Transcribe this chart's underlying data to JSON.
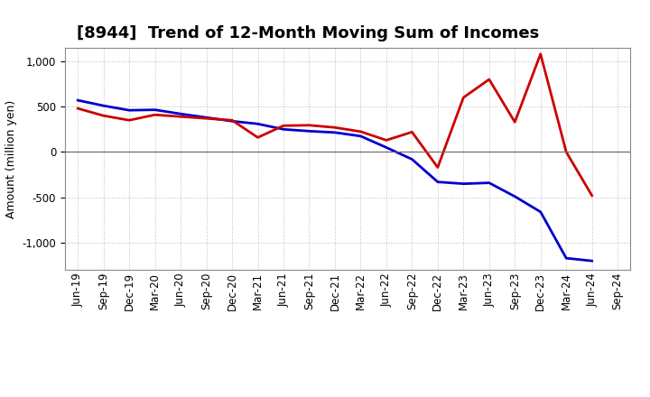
{
  "title": "[8944]  Trend of 12-Month Moving Sum of Incomes",
  "ylabel": "Amount (million yen)",
  "background_color": "#ffffff",
  "grid_color": "#bbbbbb",
  "xlabels": [
    "Jun-19",
    "Sep-19",
    "Dec-19",
    "Mar-20",
    "Jun-20",
    "Sep-20",
    "Dec-20",
    "Mar-21",
    "Jun-21",
    "Sep-21",
    "Dec-21",
    "Mar-22",
    "Jun-22",
    "Sep-22",
    "Dec-22",
    "Mar-23",
    "Jun-23",
    "Sep-23",
    "Dec-23",
    "Mar-24",
    "Jun-24",
    "Sep-24"
  ],
  "ordinary_income": [
    570,
    510,
    460,
    465,
    420,
    380,
    340,
    310,
    250,
    230,
    215,
    175,
    50,
    -80,
    -330,
    -350,
    -340,
    -490,
    -660,
    -1170,
    -1200,
    null
  ],
  "net_income": [
    480,
    400,
    350,
    410,
    390,
    370,
    350,
    160,
    290,
    295,
    270,
    225,
    130,
    220,
    -170,
    600,
    800,
    330,
    1080,
    0,
    -480,
    null
  ],
  "ordinary_color": "#0000cc",
  "net_color": "#cc0000",
  "ylim": [
    -1300,
    1150
  ],
  "yticks": [
    -1000,
    -500,
    0,
    500,
    1000
  ],
  "line_width": 2.0,
  "title_fontsize": 13,
  "legend_fontsize": 10,
  "tick_fontsize": 8.5,
  "ylabel_fontsize": 9
}
